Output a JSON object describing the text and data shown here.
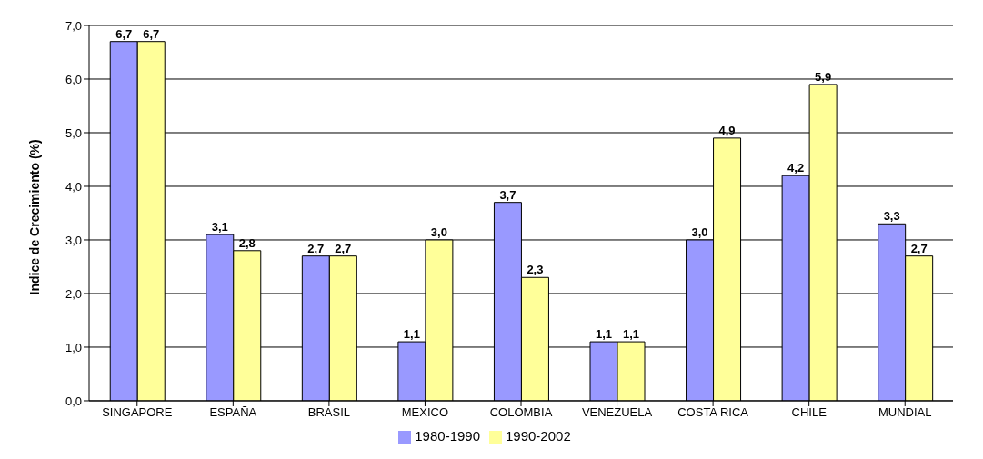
{
  "chart_data": {
    "type": "bar",
    "ylabel": "Indice de Crecimiento (%)",
    "categories": [
      "SINGAPORE",
      "ESPAÑA",
      "BRASIL",
      "MEXICO",
      "COLOMBIA",
      "VENEZUELA",
      "COSTA RICA",
      "CHILE",
      "MUNDIAL"
    ],
    "series": [
      {
        "name": "1980-1990",
        "color": "#9999ff",
        "values": [
          6.7,
          3.1,
          2.7,
          1.1,
          3.7,
          1.1,
          3.0,
          4.2,
          3.3
        ],
        "value_labels": [
          "6,7",
          "3,1",
          "2,7",
          "1,1",
          "3,7",
          "1,1",
          "3,0",
          "4,2",
          "3,3"
        ]
      },
      {
        "name": "1990-2002",
        "color": "#ffff99",
        "values": [
          6.7,
          2.8,
          2.7,
          3.0,
          2.3,
          1.1,
          4.9,
          5.9,
          2.7
        ],
        "value_labels": [
          "6,7",
          "2,8",
          "2,7",
          "3,0",
          "2,3",
          "1,1",
          "4,9",
          "5,9",
          "2,7"
        ]
      }
    ],
    "ylim": [
      0,
      7
    ],
    "yticks": [
      {
        "value": 0,
        "label": "0,0"
      },
      {
        "value": 1,
        "label": "1,0"
      },
      {
        "value": 2,
        "label": "2,0"
      },
      {
        "value": 3,
        "label": "3,0"
      },
      {
        "value": 4,
        "label": "4,0"
      },
      {
        "value": 5,
        "label": "5,0"
      },
      {
        "value": 6,
        "label": "6,0"
      },
      {
        "value": 7,
        "label": "7,0"
      }
    ],
    "grid": "y",
    "legend": "bottom"
  }
}
